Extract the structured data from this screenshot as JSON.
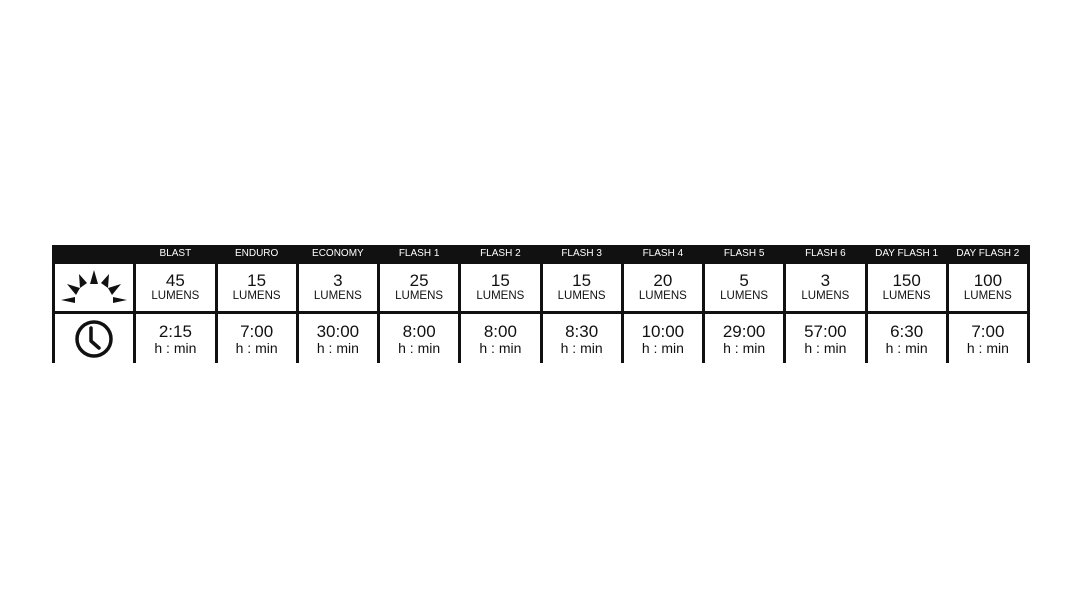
{
  "modes": [
    {
      "name": "BLAST",
      "lumens": "45",
      "runtime": "2:15"
    },
    {
      "name": "ENDURO",
      "lumens": "15",
      "runtime": "7:00"
    },
    {
      "name": "ECONOMY",
      "lumens": "3",
      "runtime": "30:00"
    },
    {
      "name": "FLASH 1",
      "lumens": "25",
      "runtime": "8:00"
    },
    {
      "name": "FLASH 2",
      "lumens": "15",
      "runtime": "8:00"
    },
    {
      "name": "FLASH 3",
      "lumens": "15",
      "runtime": "8:30"
    },
    {
      "name": "FLASH 4",
      "lumens": "20",
      "runtime": "10:00"
    },
    {
      "name": "FLASH 5",
      "lumens": "5",
      "runtime": "29:00"
    },
    {
      "name": "FLASH 6",
      "lumens": "3",
      "runtime": "57:00"
    },
    {
      "name": "DAY FLASH 1",
      "lumens": "150",
      "runtime": "6:30"
    },
    {
      "name": "DAY FLASH 2",
      "lumens": "100",
      "runtime": "7:00"
    }
  ],
  "lumens_unit": "LUMENS",
  "runtime_unit": "h : min",
  "icons": {
    "brightness": "sun-rays-icon",
    "runtime": "clock-icon"
  }
}
